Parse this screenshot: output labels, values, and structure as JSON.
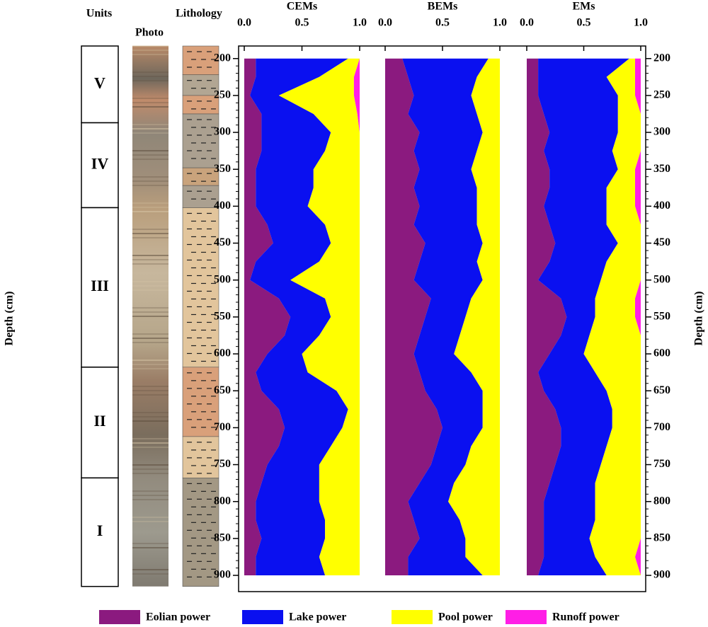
{
  "depth_axis": {
    "label": "Depth (cm)",
    "lim": [
      183,
      922
    ],
    "ticks": [
      200,
      250,
      300,
      350,
      400,
      450,
      500,
      550,
      600,
      650,
      700,
      750,
      800,
      850,
      900
    ]
  },
  "units": {
    "title": "Units",
    "items": [
      {
        "label": "V",
        "top": 183,
        "bottom": 287
      },
      {
        "label": "IV",
        "top": 287,
        "bottom": 402
      },
      {
        "label": "III",
        "top": 402,
        "bottom": 618
      },
      {
        "label": "II",
        "top": 618,
        "bottom": 768
      },
      {
        "label": "I",
        "top": 768,
        "bottom": 915
      }
    ]
  },
  "photo": {
    "title": "Photo"
  },
  "lithology": {
    "title": "Lithology",
    "layers": [
      {
        "top": 183,
        "bottom": 222,
        "color": "#d9a07a"
      },
      {
        "top": 222,
        "bottom": 250,
        "color": "#b2a693"
      },
      {
        "top": 250,
        "bottom": 275,
        "color": "#d9a07a"
      },
      {
        "top": 275,
        "bottom": 348,
        "color": "#aba090"
      },
      {
        "top": 348,
        "bottom": 372,
        "color": "#c9a37c"
      },
      {
        "top": 372,
        "bottom": 402,
        "color": "#aba090"
      },
      {
        "top": 402,
        "bottom": 618,
        "color": "#e2c59c"
      },
      {
        "top": 618,
        "bottom": 712,
        "color": "#d9a07a"
      },
      {
        "top": 712,
        "bottom": 768,
        "color": "#e2c59c"
      },
      {
        "top": 768,
        "bottom": 915,
        "color": "#a39884"
      }
    ]
  },
  "chart_data": [
    {
      "type": "area",
      "title": "CEMs",
      "xlim": [
        0,
        1
      ],
      "xticks": [
        {
          "value": 0,
          "label": "0.0"
        },
        0.5,
        {
          "value": 1,
          "label": "1.0"
        }
      ],
      "depth": [
        200,
        225,
        250,
        275,
        300,
        325,
        350,
        375,
        400,
        425,
        450,
        475,
        500,
        525,
        550,
        575,
        600,
        625,
        650,
        675,
        700,
        725,
        750,
        775,
        800,
        825,
        850,
        875,
        900
      ],
      "series": [
        {
          "name": "Eolian power",
          "color": "#8b1a7f",
          "values": [
            0.1,
            0.1,
            0.05,
            0.15,
            0.15,
            0.15,
            0.1,
            0.1,
            0.1,
            0.2,
            0.25,
            0.1,
            0.05,
            0.3,
            0.4,
            0.35,
            0.2,
            0.1,
            0.15,
            0.3,
            0.35,
            0.3,
            0.2,
            0.15,
            0.1,
            0.1,
            0.15,
            0.1,
            0.1
          ]
        },
        {
          "name": "Lake power",
          "color": "#0a10f0",
          "values": [
            0.8,
            0.55,
            0.25,
            0.45,
            0.6,
            0.55,
            0.5,
            0.5,
            0.45,
            0.5,
            0.5,
            0.55,
            0.35,
            0.4,
            0.35,
            0.3,
            0.3,
            0.45,
            0.65,
            0.6,
            0.5,
            0.45,
            0.45,
            0.5,
            0.55,
            0.6,
            0.55,
            0.55,
            0.6
          ]
        },
        {
          "name": "Pool power",
          "color": "#ffff00",
          "values": [
            0.1,
            0.3,
            0.65,
            0.38,
            0.25,
            0.3,
            0.4,
            0.4,
            0.45,
            0.3,
            0.25,
            0.35,
            0.6,
            0.3,
            0.25,
            0.35,
            0.5,
            0.45,
            0.2,
            0.1,
            0.15,
            0.25,
            0.35,
            0.35,
            0.35,
            0.3,
            0.3,
            0.35,
            0.3
          ]
        },
        {
          "name": "Runoff power",
          "color": "#ff1ee6",
          "values": [
            0,
            0.05,
            0.05,
            0.02,
            0,
            0,
            0,
            0,
            0,
            0,
            0,
            0,
            0,
            0,
            0,
            0,
            0,
            0,
            0,
            0,
            0,
            0,
            0,
            0,
            0,
            0,
            0,
            0,
            0
          ]
        }
      ]
    },
    {
      "type": "area",
      "title": "BEMs",
      "xlim": [
        0,
        1
      ],
      "xticks": [
        {
          "value": 0,
          "label": "0.0"
        },
        0.5,
        {
          "value": 1,
          "label": "1.0"
        }
      ],
      "depth": [
        200,
        225,
        250,
        275,
        300,
        325,
        350,
        375,
        400,
        425,
        450,
        475,
        500,
        525,
        550,
        575,
        600,
        625,
        650,
        675,
        700,
        725,
        750,
        775,
        800,
        825,
        850,
        875,
        900
      ],
      "series": [
        {
          "name": "Eolian power",
          "color": "#8b1a7f",
          "values": [
            0.15,
            0.2,
            0.25,
            0.2,
            0.3,
            0.25,
            0.3,
            0.25,
            0.3,
            0.25,
            0.35,
            0.3,
            0.25,
            0.4,
            0.35,
            0.3,
            0.25,
            0.3,
            0.35,
            0.45,
            0.5,
            0.45,
            0.4,
            0.3,
            0.2,
            0.25,
            0.3,
            0.2,
            0.2
          ]
        },
        {
          "name": "Lake power",
          "color": "#0a10f0",
          "values": [
            0.75,
            0.6,
            0.5,
            0.6,
            0.55,
            0.55,
            0.45,
            0.55,
            0.5,
            0.55,
            0.5,
            0.5,
            0.6,
            0.35,
            0.35,
            0.35,
            0.35,
            0.45,
            0.5,
            0.4,
            0.35,
            0.3,
            0.3,
            0.3,
            0.35,
            0.4,
            0.4,
            0.5,
            0.65
          ]
        },
        {
          "name": "Pool power",
          "color": "#ffff00",
          "values": [
            0.1,
            0.2,
            0.25,
            0.2,
            0.15,
            0.2,
            0.25,
            0.2,
            0.2,
            0.2,
            0.15,
            0.2,
            0.15,
            0.25,
            0.3,
            0.35,
            0.4,
            0.25,
            0.15,
            0.15,
            0.15,
            0.25,
            0.3,
            0.4,
            0.45,
            0.35,
            0.3,
            0.3,
            0.15
          ]
        }
      ]
    },
    {
      "type": "area",
      "title": "EMs",
      "xlim": [
        0,
        1
      ],
      "xticks": [
        {
          "value": 0,
          "label": "0.0"
        },
        0.5,
        {
          "value": 1,
          "label": "1.0"
        }
      ],
      "depth": [
        200,
        225,
        250,
        275,
        300,
        325,
        350,
        375,
        400,
        425,
        450,
        475,
        500,
        525,
        550,
        575,
        600,
        625,
        650,
        675,
        700,
        725,
        750,
        775,
        800,
        825,
        850,
        875,
        900
      ],
      "series": [
        {
          "name": "Eolian power",
          "color": "#8b1a7f",
          "values": [
            0.1,
            0.1,
            0.1,
            0.15,
            0.2,
            0.15,
            0.2,
            0.2,
            0.15,
            0.2,
            0.25,
            0.2,
            0.1,
            0.3,
            0.35,
            0.3,
            0.2,
            0.1,
            0.15,
            0.25,
            0.3,
            0.3,
            0.25,
            0.2,
            0.15,
            0.15,
            0.15,
            0.15,
            0.1
          ]
        },
        {
          "name": "Lake power",
          "color": "#0a10f0",
          "values": [
            0.8,
            0.6,
            0.7,
            0.65,
            0.6,
            0.6,
            0.6,
            0.5,
            0.55,
            0.5,
            0.55,
            0.5,
            0.55,
            0.3,
            0.25,
            0.25,
            0.3,
            0.5,
            0.55,
            0.5,
            0.45,
            0.4,
            0.4,
            0.4,
            0.45,
            0.45,
            0.4,
            0.45,
            0.6
          ]
        },
        {
          "name": "Pool power",
          "color": "#ffff00",
          "values": [
            0.05,
            0.25,
            0.15,
            0.2,
            0.2,
            0.25,
            0.15,
            0.25,
            0.25,
            0.3,
            0.2,
            0.3,
            0.35,
            0.35,
            0.35,
            0.45,
            0.5,
            0.4,
            0.3,
            0.25,
            0.25,
            0.3,
            0.35,
            0.4,
            0.4,
            0.4,
            0.45,
            0.35,
            0.3
          ]
        },
        {
          "name": "Runoff power",
          "color": "#ff1ee6",
          "values": [
            0.05,
            0.05,
            0.05,
            0,
            0,
            0,
            0.05,
            0.05,
            0.05,
            0,
            0,
            0,
            0,
            0.05,
            0.05,
            0,
            0,
            0,
            0,
            0,
            0,
            0,
            0,
            0,
            0,
            0,
            0,
            0.05,
            0
          ]
        }
      ]
    }
  ]
}
